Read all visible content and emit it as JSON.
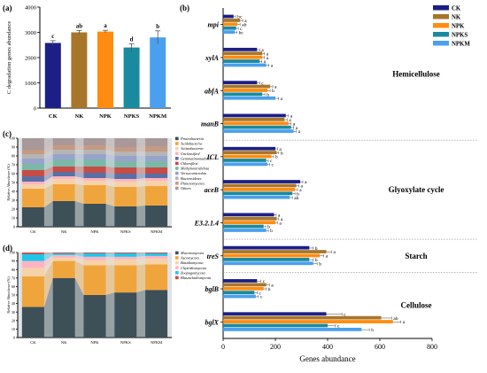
{
  "chart_data": [
    {
      "id": "a",
      "type": "bar",
      "panel_label": "(a)",
      "ylabel": "C degradation genes abundance",
      "ylim": [
        0,
        4000
      ],
      "yticks": [
        "0",
        "1000",
        "2000",
        "3000",
        "4000"
      ],
      "categories": [
        "CK",
        "NK",
        "NPK",
        "NPKS",
        "NPKM"
      ],
      "values": [
        2580,
        3000,
        3030,
        2400,
        2800
      ],
      "errors": [
        90,
        70,
        50,
        150,
        260
      ],
      "letters": [
        "c",
        "ab",
        "a",
        "d",
        "b"
      ],
      "colors": [
        "#1c1f86",
        "#a8762a",
        "#ff8c10",
        "#1a8a9e",
        "#4aa0ee"
      ]
    },
    {
      "id": "b",
      "type": "bar",
      "orientation": "horizontal",
      "panel_label": "(b)",
      "xlabel": "Genes abundance",
      "xlim": [
        0,
        800
      ],
      "xticks": [
        "0",
        "200",
        "400",
        "600",
        "800"
      ],
      "series_names": [
        "CK",
        "NK",
        "NPK",
        "NPKS",
        "NPKM"
      ],
      "colors": [
        "#1c1f86",
        "#a8762a",
        "#ff8c10",
        "#1a8a9e",
        "#4aa0ee"
      ],
      "genes": [
        {
          "name": "mpi",
          "values": [
            40,
            65,
            55,
            50,
            45
          ],
          "errors": [
            8,
            10,
            10,
            8,
            8
          ],
          "letters": [
            "bc",
            "a",
            "ab",
            "c",
            "bc"
          ]
        },
        {
          "name": "xylA",
          "values": [
            130,
            150,
            150,
            140,
            165
          ],
          "errors": [
            10,
            8,
            8,
            8,
            10
          ],
          "letters": [
            "a",
            "a",
            "a",
            "a",
            "a"
          ]
        },
        {
          "name": "abfA",
          "values": [
            130,
            180,
            170,
            150,
            200
          ],
          "errors": [
            10,
            10,
            10,
            10,
            12
          ],
          "letters": [
            "c",
            "a",
            "b",
            "b",
            "a"
          ]
        },
        {
          "name": "manB",
          "values": [
            240,
            235,
            250,
            260,
            270
          ],
          "errors": [
            10,
            10,
            10,
            10,
            10
          ],
          "letters": [
            "a",
            "a",
            "a",
            "a",
            "a"
          ]
        },
        {
          "name": "ICL",
          "values": [
            200,
            205,
            185,
            165,
            170
          ],
          "errors": [
            8,
            8,
            8,
            8,
            8
          ],
          "letters": [
            "a",
            "b",
            "b",
            "c",
            "c"
          ]
        },
        {
          "name": "aceB",
          "values": [
            295,
            280,
            275,
            265,
            255
          ],
          "errors": [
            10,
            10,
            10,
            10,
            10
          ],
          "letters": [
            "a",
            "a",
            "a",
            "b",
            "ab"
          ]
        },
        {
          "name": "E3.2.1.4",
          "values": [
            195,
            205,
            200,
            155,
            165
          ],
          "errors": [
            8,
            8,
            8,
            8,
            8
          ],
          "letters": [
            "a",
            "a",
            "a",
            "b",
            "b"
          ]
        },
        {
          "name": "treS",
          "values": [
            330,
            395,
            370,
            330,
            345
          ],
          "errors": [
            15,
            20,
            15,
            15,
            15
          ],
          "letters": [
            "b",
            "a",
            "a",
            "b",
            "b"
          ]
        },
        {
          "name": "bglB",
          "values": [
            130,
            165,
            155,
            120,
            125
          ],
          "errors": [
            15,
            12,
            10,
            10,
            10
          ],
          "letters": [
            "c",
            "a",
            "b",
            "c",
            "c"
          ]
        },
        {
          "name": "bglX",
          "values": [
            395,
            605,
            650,
            400,
            530
          ],
          "errors": [
            60,
            40,
            30,
            30,
            30
          ],
          "letters": [
            "c",
            "ab",
            "a",
            "c",
            "b"
          ]
        }
      ],
      "groups": [
        {
          "label": "Hemicellulose",
          "genes": [
            "mpi",
            "xylA",
            "abfA",
            "manB"
          ]
        },
        {
          "label": "Glyoxylate cycle",
          "genes": [
            "ICL",
            "aceB",
            "E3.2.1.4"
          ]
        },
        {
          "label": "Starch",
          "genes": [
            "treS"
          ]
        },
        {
          "label": "Cellulose",
          "genes": [
            "bglB",
            "bglX"
          ]
        }
      ]
    },
    {
      "id": "c",
      "type": "bar",
      "stacked": true,
      "panel_label": "(c)",
      "ylabel": "Relative Abundance (%)",
      "ylim": [
        0,
        100
      ],
      "yticks": [
        "0",
        "10",
        "20",
        "30",
        "40",
        "50",
        "60",
        "70",
        "80",
        "90",
        "100"
      ],
      "categories": [
        "CK",
        "NK",
        "NPK",
        "NPKS",
        "NPKM"
      ],
      "series": [
        {
          "name": "Proteobacteria",
          "color": "#3d4f57",
          "values": [
            22,
            29,
            26,
            23,
            24
          ]
        },
        {
          "name": "Acidobacteria",
          "color": "#f0a53c",
          "values": [
            21,
            19,
            21,
            22,
            22
          ]
        },
        {
          "name": "Actinobacteria",
          "color": "#f6d2a8",
          "values": [
            5,
            6,
            5,
            6,
            6
          ]
        },
        {
          "name": "Unclassified",
          "color": "#ffb3c2",
          "values": [
            3,
            3,
            3,
            3,
            3
          ]
        },
        {
          "name": "Gemmatimonadetes",
          "color": "#5a6fa4",
          "values": [
            6,
            5,
            6,
            6,
            5
          ]
        },
        {
          "name": "Chloroflexi",
          "color": "#c64c45",
          "values": [
            7,
            6,
            7,
            7,
            7
          ]
        },
        {
          "name": "Methylomirabilota",
          "color": "#7cb8a8",
          "values": [
            7,
            8,
            8,
            7,
            7
          ]
        },
        {
          "name": "Verrucomicrobia",
          "color": "#97a3c9",
          "values": [
            6,
            6,
            6,
            6,
            6
          ]
        },
        {
          "name": "Bacteroidetes",
          "color": "#b5b5b5",
          "values": [
            5,
            5,
            5,
            5,
            5
          ]
        },
        {
          "name": "Planctomycetes",
          "color": "#c49a82",
          "values": [
            5,
            5,
            5,
            5,
            6
          ]
        },
        {
          "name": "Others",
          "color": "#a99899",
          "values": [
            13,
            8,
            8,
            10,
            9
          ]
        }
      ]
    },
    {
      "id": "d",
      "type": "bar",
      "stacked": true,
      "panel_label": "(d)",
      "ylabel": "Relative Abundance (%)",
      "ylim": [
        0,
        100
      ],
      "yticks": [
        "0",
        "10",
        "20",
        "30",
        "40",
        "50",
        "60",
        "70",
        "80",
        "90",
        "100"
      ],
      "categories": [
        "CK",
        "NK",
        "NPK",
        "NPKS",
        "NPKM"
      ],
      "series": [
        {
          "name": "Mucoromycota",
          "color": "#3d4f57",
          "values": [
            36,
            70,
            50,
            53,
            56
          ]
        },
        {
          "name": "Ascomycota",
          "color": "#f0a53c",
          "values": [
            36,
            20,
            35,
            32,
            30
          ]
        },
        {
          "name": "Basidiomycota",
          "color": "#f6d2a8",
          "values": [
            10,
            4,
            6,
            7,
            7
          ]
        },
        {
          "name": "Chytridiomycota",
          "color": "#ffb3c2",
          "values": [
            8,
            3,
            4,
            3,
            3
          ]
        },
        {
          "name": "Zoopagomycota",
          "color": "#1fc6ea",
          "values": [
            8,
            2,
            4,
            4,
            3
          ]
        },
        {
          "name": "Blastocladiomycota",
          "color": "#c64c45",
          "values": [
            2,
            1,
            1,
            1,
            1
          ]
        }
      ]
    }
  ]
}
